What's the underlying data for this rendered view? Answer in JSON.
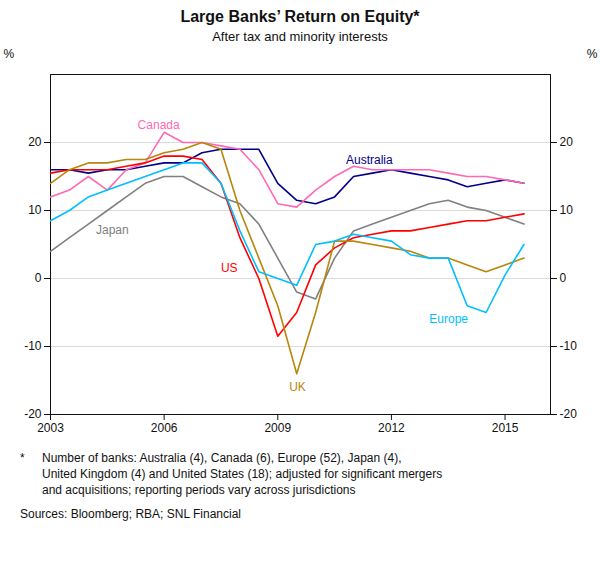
{
  "chart_data": {
    "type": "line",
    "title": "Large Banks’ Return on Equity*",
    "subtitle": "After tax and minority interests",
    "ylabel": "%",
    "y2label": "%",
    "footnote_marker": "*",
    "footnote": [
      "Number of banks: Australia (4), Canada (6), Europe (52), Japan (4),",
      "United Kingdom (4) and United States (18); adjusted for significant mergers",
      "and acquisitions; reporting periods vary across jurisdictions"
    ],
    "source": "Sources:  Bloomberg; RBA; SNL Financial",
    "x": [
      2003,
      2003.5,
      2004,
      2004.5,
      2005,
      2005.5,
      2006,
      2006.5,
      2007,
      2007.5,
      2008,
      2008.5,
      2009,
      2009.5,
      2010,
      2010.5,
      2011,
      2011.5,
      2012,
      2012.5,
      2013,
      2013.5,
      2014,
      2014.5,
      2015,
      2015.5
    ],
    "series": [
      {
        "name": "Australia",
        "color": "#00008B",
        "values": [
          16,
          16,
          15.5,
          16,
          16,
          16.5,
          17,
          17,
          18.5,
          19,
          19,
          19,
          14,
          11.5,
          11,
          12,
          15,
          15.5,
          16,
          15.5,
          15,
          14.5,
          13.5,
          14,
          14.5,
          14
        ]
      },
      {
        "name": "Canada",
        "color": "#FF69B4",
        "values": [
          12,
          13,
          15,
          13,
          16,
          17,
          21.5,
          20,
          20,
          19.5,
          19,
          16,
          11,
          10.5,
          13,
          15,
          16.5,
          16,
          16,
          16,
          16,
          15.5,
          15,
          15,
          14.5,
          14
        ]
      },
      {
        "name": "Japan",
        "color": "#808080",
        "values": [
          4,
          6,
          8,
          10,
          12,
          14,
          15,
          15,
          13.5,
          12,
          11,
          8,
          3,
          -2,
          -3,
          3,
          7,
          8,
          9,
          10,
          11,
          11.5,
          10.5,
          10,
          9,
          8
        ]
      },
      {
        "name": "US",
        "color": "#FF0000",
        "values": [
          15.5,
          16,
          16,
          16,
          16.5,
          17,
          18,
          18,
          17.5,
          14,
          6,
          0,
          -8.5,
          -5,
          2,
          4.5,
          6,
          6.5,
          7,
          7,
          7.5,
          8,
          8.5,
          8.5,
          9,
          9.5
        ]
      },
      {
        "name": "UK",
        "color": "#B8860B",
        "values": [
          14,
          16,
          17,
          17,
          17.5,
          17.5,
          18.5,
          19,
          20,
          19,
          10,
          3,
          -4,
          -14,
          -5,
          5.5,
          5.5,
          5,
          4.5,
          4,
          3,
          3,
          2,
          1,
          2,
          3
        ]
      },
      {
        "name": "Europe",
        "color": "#00BFFF",
        "values": [
          8.5,
          10,
          12,
          13,
          14,
          15,
          16,
          17,
          17,
          14,
          7,
          1,
          0,
          -1,
          5,
          5.5,
          6.5,
          6,
          5.5,
          3.5,
          3,
          3,
          -4,
          -5,
          0.5,
          5
        ]
      }
    ],
    "annotations": [
      {
        "text": "Australia",
        "x": 2010.8,
        "y": 16.8
      },
      {
        "text": "Canada",
        "x": 2005.3,
        "y": 22.0
      },
      {
        "text": "Japan",
        "x": 2004.2,
        "y": 6.5
      },
      {
        "text": "US",
        "x": 2007.5,
        "y": 1.0
      },
      {
        "text": "UK",
        "x": 2009.3,
        "y": -16.5
      },
      {
        "text": "Europe",
        "x": 2013.0,
        "y": -6.5
      }
    ],
    "xlim": [
      2003,
      2016.2
    ],
    "xticks": [
      2003,
      2006,
      2009,
      2012,
      2015
    ],
    "ylim": [
      -20,
      30
    ],
    "yticks": [
      -20,
      -10,
      0,
      10,
      20
    ],
    "y2lim": [
      -20,
      30
    ],
    "y2ticks": [
      -20,
      -10,
      0,
      10,
      20
    ],
    "grid": true
  }
}
